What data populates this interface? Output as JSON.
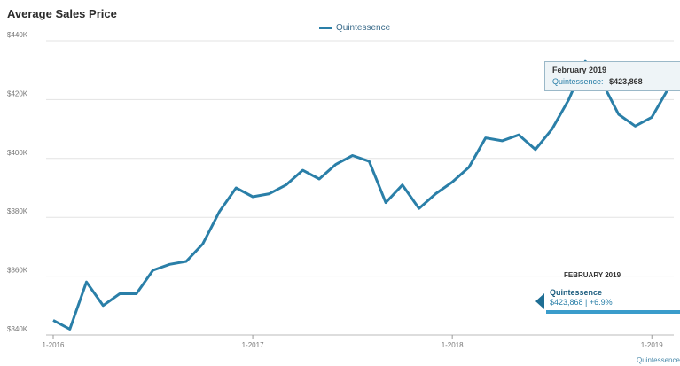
{
  "chart_data": {
    "type": "line",
    "title": "Average Sales Price",
    "xlabel": "",
    "ylabel": "",
    "ylim": [
      340000,
      440000
    ],
    "y_ticks": [
      {
        "value": 340000,
        "label": "$340K"
      },
      {
        "value": 360000,
        "label": "$360K"
      },
      {
        "value": 380000,
        "label": "$380K"
      },
      {
        "value": 400000,
        "label": "$400K"
      },
      {
        "value": 420000,
        "label": "$420K"
      },
      {
        "value": 440000,
        "label": "$440K"
      }
    ],
    "x_ticks": [
      {
        "index": 0,
        "label": "1-2016"
      },
      {
        "index": 12,
        "label": "1-2017"
      },
      {
        "index": 24,
        "label": "1-2018"
      },
      {
        "index": 36,
        "label": "1-2019"
      }
    ],
    "x": [
      "2016-01",
      "2016-02",
      "2016-03",
      "2016-04",
      "2016-05",
      "2016-06",
      "2016-07",
      "2016-08",
      "2016-09",
      "2016-10",
      "2016-11",
      "2016-12",
      "2017-01",
      "2017-02",
      "2017-03",
      "2017-04",
      "2017-05",
      "2017-06",
      "2017-07",
      "2017-08",
      "2017-09",
      "2017-10",
      "2017-11",
      "2017-12",
      "2018-01",
      "2018-02",
      "2018-03",
      "2018-04",
      "2018-05",
      "2018-06",
      "2018-07",
      "2018-08",
      "2018-09",
      "2018-10",
      "2018-11",
      "2018-12",
      "2019-01",
      "2019-02"
    ],
    "series": [
      {
        "name": "Quintessence",
        "color": "#2a7fa8",
        "values": [
          345000,
          342000,
          358000,
          350000,
          354000,
          354000,
          362000,
          364000,
          365000,
          371000,
          382000,
          390000,
          387000,
          388000,
          391000,
          396000,
          393000,
          398000,
          401000,
          399000,
          385000,
          391000,
          383000,
          388000,
          392000,
          397000,
          407000,
          406000,
          408000,
          403000,
          410000,
          420000,
          433000,
          426000,
          415000,
          411000,
          414000,
          423868
        ]
      }
    ],
    "grid": true,
    "legend": "top-center"
  },
  "legend": {
    "label": "Quintessence"
  },
  "tooltip": {
    "title": "February 2019",
    "series": "Quintessence:",
    "value": "$423,868"
  },
  "panel": {
    "heading": "FEBRUARY 2019",
    "series": "Quintessence",
    "value": "$423,868 | +6.9%"
  },
  "x_series_label": "Quintessence"
}
